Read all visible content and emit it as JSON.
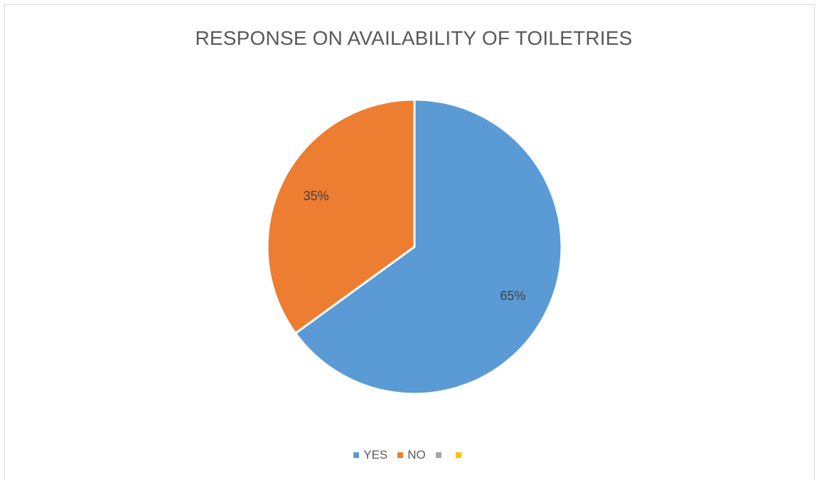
{
  "chart_data": {
    "type": "pie",
    "title": "RESPONSE ON AVAILABILITY OF TOILETRIES",
    "categories": [
      "YES",
      "NO"
    ],
    "values": [
      65,
      35
    ],
    "data_labels": [
      "65%",
      "35%"
    ],
    "colors": [
      "#5b9bd5",
      "#ed7d31"
    ],
    "legend_position": "bottom",
    "legend": [
      {
        "label": "YES",
        "color": "#5b9bd5"
      },
      {
        "label": "NO",
        "color": "#ed7d31"
      },
      {
        "label": "",
        "color": "#a5a5a5"
      },
      {
        "label": "",
        "color": "#ffc000"
      }
    ]
  }
}
